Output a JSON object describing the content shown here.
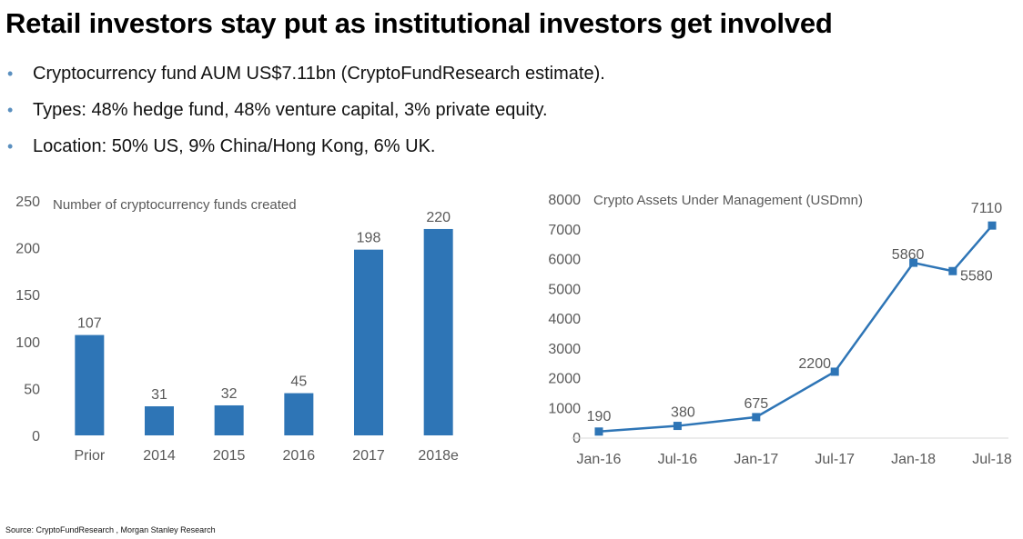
{
  "title": "Retail investors stay put as institutional investors get involved",
  "bullets": [
    "Cryptocurrency fund AUM US$7.11bn (CryptoFundResearch estimate).",
    "Types: 48% hedge fund, 48% venture capital, 3% private equity.",
    "Location: 50% US, 9% China/Hong Kong, 6% UK."
  ],
  "source": "Source: CryptoFundResearch , Morgan Stanley Research",
  "colors": {
    "series": "#2e75b6",
    "axis_text": "#595959",
    "bullet": "#5a8fbf"
  },
  "chart_data": [
    {
      "type": "bar",
      "title": "Number of cryptocurrency funds created",
      "categories": [
        "Prior",
        "2014",
        "2015",
        "2016",
        "2017",
        "2018e"
      ],
      "values": [
        107,
        31,
        32,
        45,
        198,
        220
      ],
      "data_labels": [
        "107",
        "31",
        "32",
        "45",
        "198",
        "220"
      ],
      "yticks": [
        "0",
        "50",
        "100",
        "150",
        "200",
        "250"
      ],
      "ylim": [
        0,
        250
      ],
      "grid": false,
      "legend": "none"
    },
    {
      "type": "line",
      "title": "Crypto Assets Under Management (USDmn)",
      "x_dates": [
        "2016-01",
        "2016-07",
        "2017-01",
        "2017-07",
        "2018-01",
        "2018-04",
        "2018-07"
      ],
      "values": [
        190,
        380,
        675,
        2200,
        5860,
        5580,
        7110
      ],
      "data_labels": [
        "190",
        "380",
        "675",
        "2200",
        "5860",
        "5580",
        "7110"
      ],
      "xticks": [
        "Jan-16",
        "Jul-16",
        "Jan-17",
        "Jul-17",
        "Jan-18",
        "Jul-18"
      ],
      "xtick_dates": [
        "2016-01",
        "2016-07",
        "2017-01",
        "2017-07",
        "2018-01",
        "2018-07"
      ],
      "yticks": [
        "0",
        "1000",
        "2000",
        "3000",
        "4000",
        "5000",
        "6000",
        "7000",
        "8000"
      ],
      "ylim": [
        0,
        8000
      ],
      "grid": false,
      "legend": "none"
    }
  ]
}
